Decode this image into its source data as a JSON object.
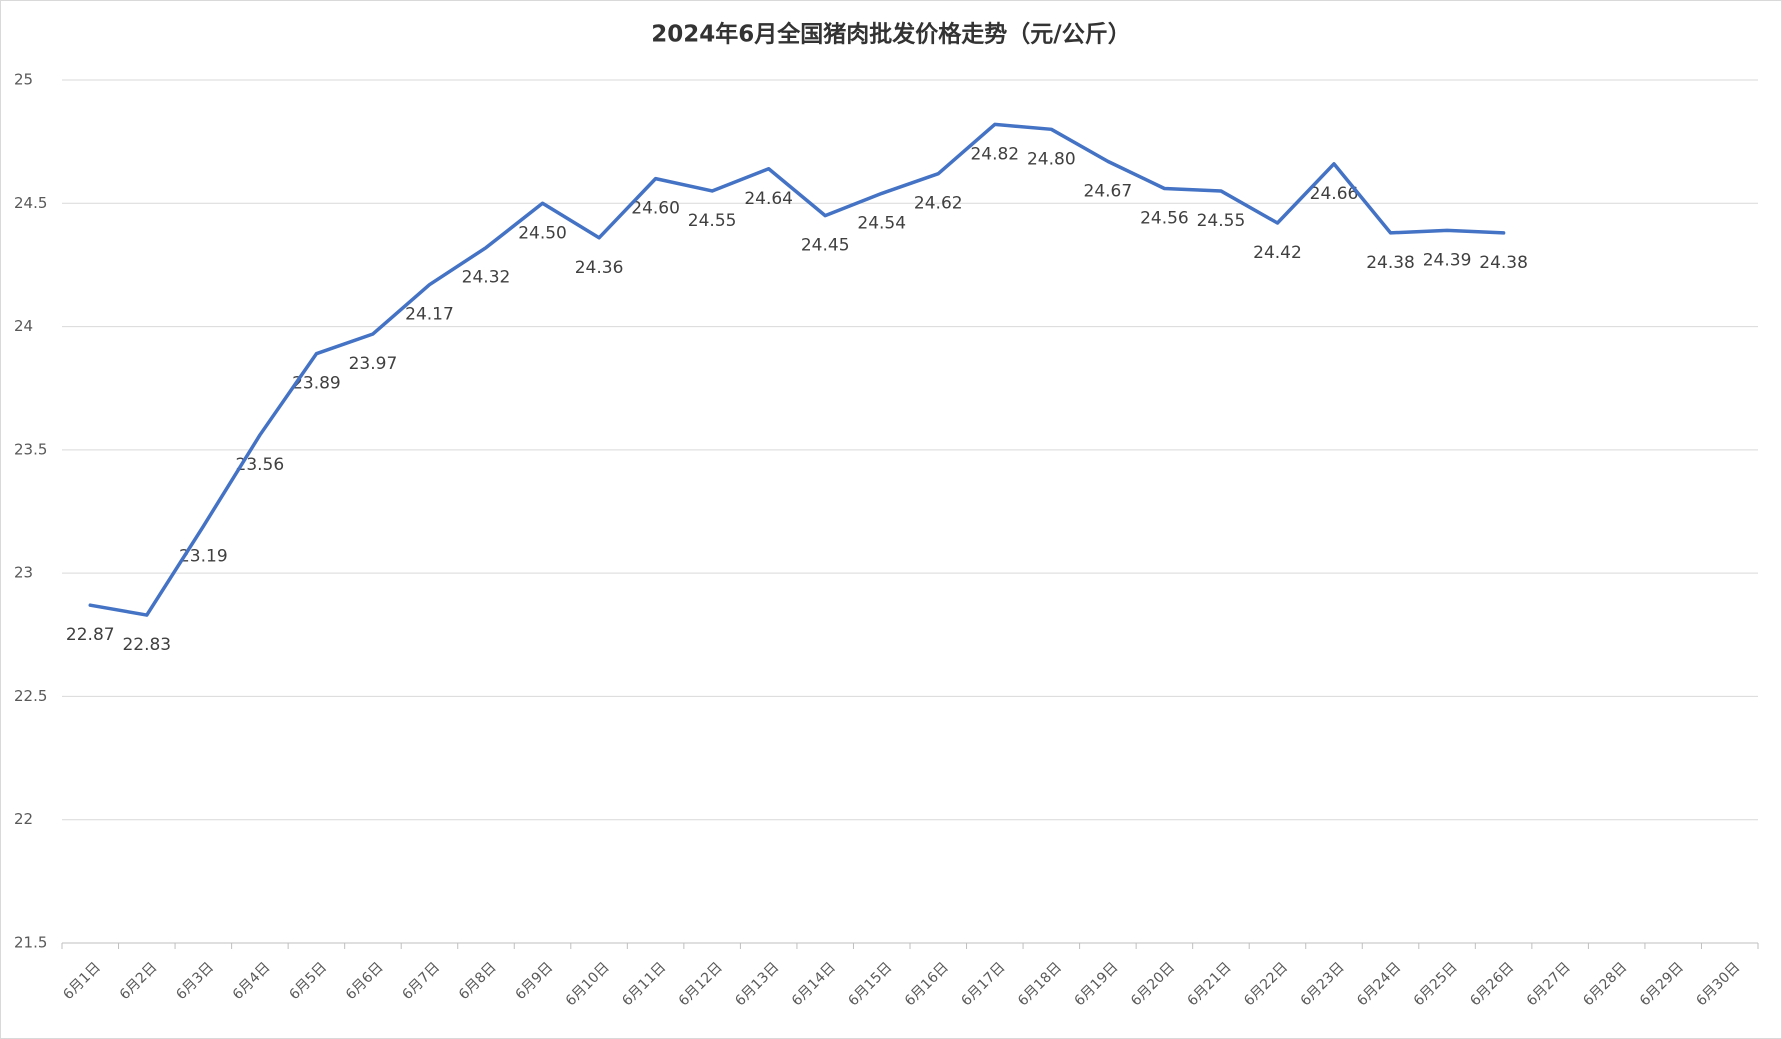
{
  "chart_data": {
    "type": "line",
    "title": "2024年6月全国猪肉批发价格走势（元/公斤）",
    "categories": [
      "6月1日",
      "6月2日",
      "6月3日",
      "6月4日",
      "6月5日",
      "6月6日",
      "6月7日",
      "6月8日",
      "6月9日",
      "6月10日",
      "6月11日",
      "6月12日",
      "6月13日",
      "6月14日",
      "6月15日",
      "6月16日",
      "6月17日",
      "6月18日",
      "6月19日",
      "6月20日",
      "6月21日",
      "6月22日",
      "6月23日",
      "6月24日",
      "6月25日",
      "6月26日",
      "6月27日",
      "6月28日",
      "6月29日",
      "6月30日"
    ],
    "series": [
      {
        "name": "全国猪肉批发价格",
        "color": "#4472c4",
        "values": [
          22.87,
          22.83,
          23.19,
          23.56,
          23.89,
          23.97,
          24.17,
          24.32,
          24.5,
          24.36,
          24.6,
          24.55,
          24.64,
          24.45,
          24.54,
          24.62,
          24.82,
          24.8,
          24.67,
          24.56,
          24.55,
          24.42,
          24.66,
          24.38,
          24.39,
          24.38,
          null,
          null,
          null,
          null
        ],
        "value_labels": [
          "22.87",
          "22.83",
          "23.19",
          "23.56",
          "23.89",
          "23.97",
          "24.17",
          "24.32",
          "24.50",
          "24.36",
          "24.60",
          "24.55",
          "24.64",
          "24.45",
          "24.54",
          "24.62",
          "24.82",
          "24.80",
          "24.67",
          "24.56",
          "24.55",
          "24.42",
          "24.66",
          "24.38",
          "24.39",
          "24.38",
          null,
          null,
          null,
          null
        ]
      }
    ],
    "ylim": [
      21.5,
      25
    ],
    "yticks": [
      21.5,
      22,
      22.5,
      23,
      23.5,
      24,
      24.5,
      25
    ],
    "grid": true
  }
}
